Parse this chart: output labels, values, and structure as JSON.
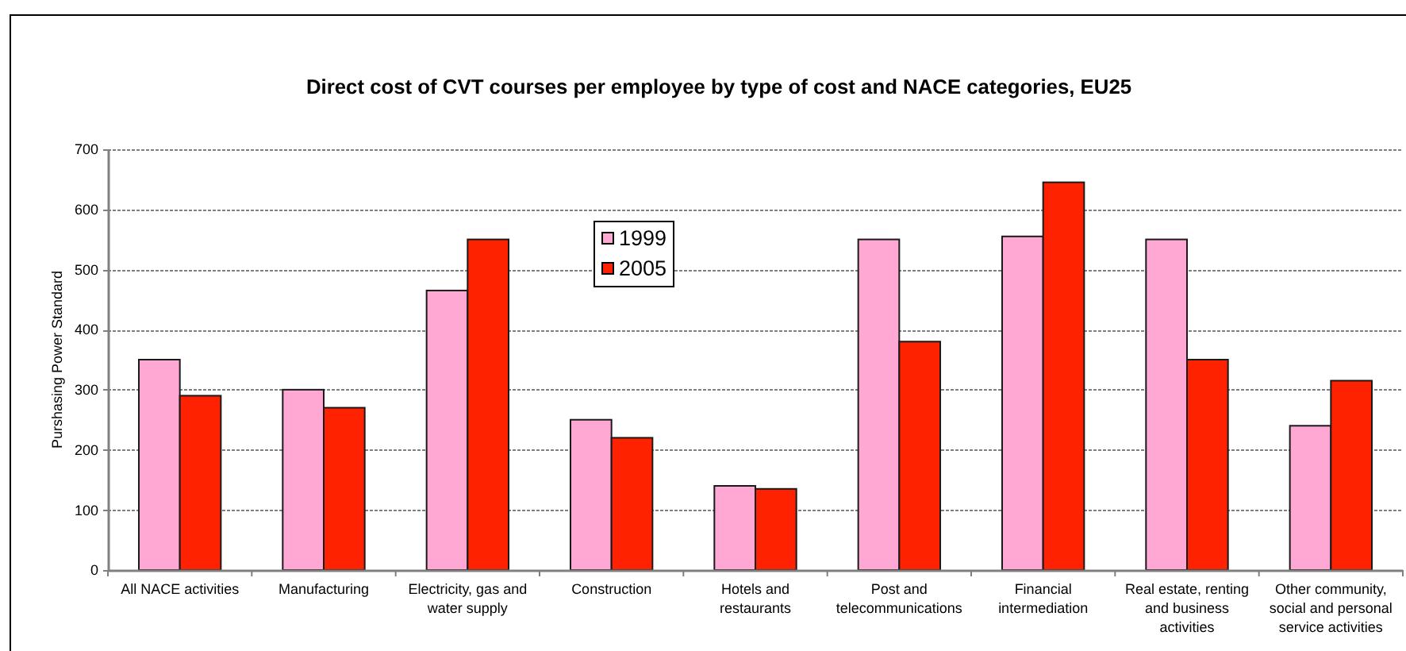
{
  "chart_data": {
    "type": "bar",
    "title": "Direct cost of CVT courses per employee by type of cost and NACE categories, EU25",
    "ylabel": "Purshasing Power Standard",
    "categories": [
      "All NACE activities",
      "Manufacturing",
      "Electricity, gas and water supply",
      "Construction",
      "Hotels and restaurants",
      "Post and telecommunications",
      "Financial intermediation",
      "Real estate, renting and business activities",
      "Other community, social and personal service activities"
    ],
    "series": [
      {
        "name": "1999",
        "color": "#ffa8d4",
        "values": [
          350,
          300,
          465,
          250,
          140,
          550,
          555,
          550,
          240
        ]
      },
      {
        "name": "2005",
        "color": "#ff2200",
        "values": [
          290,
          270,
          550,
          220,
          135,
          380,
          645,
          350,
          315
        ]
      }
    ],
    "ylim": [
      0,
      700
    ],
    "yticks": [
      0,
      100,
      200,
      300,
      400,
      500,
      600,
      700
    ],
    "grid": "y",
    "legend": "top"
  }
}
